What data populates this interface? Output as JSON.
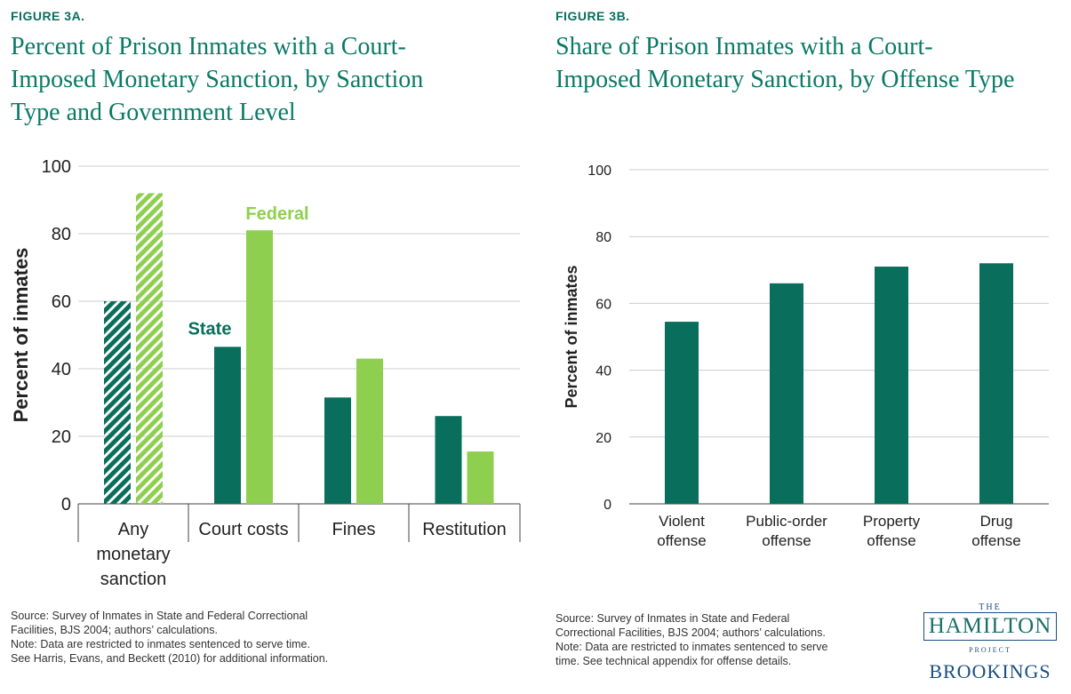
{
  "panels": {
    "a": {
      "figure_label": "FIGURE 3A.",
      "title": "Percent of Prison Inmates with a Court-\nImposed Monetary Sanction, by Sanction\nType and Government Level",
      "source": "Source: Survey of Inmates in State and Federal Correctional Facilities, BJS 2004; authors’ calculations.",
      "note": "Note: Data are restricted to inmates sentenced to serve time. See Harris, Evans, and Beckett (2010) for additional information."
    },
    "b": {
      "figure_label": "FIGURE 3B.",
      "title": "Share of Prison Inmates with a Court-\nImposed Monetary Sanction, by Offense Type",
      "source": "Source: Survey of Inmates in State and Federal Correctional Facilities, BJS 2004; authors’ calculations.",
      "note": "Note: Data are restricted to inmates sentenced to serve time. See technical appendix for offense details."
    }
  },
  "logo": {
    "the": "THE",
    "hamilton": "HAMILTON",
    "project": "PROJECT",
    "brookings": "BROOKINGS"
  },
  "colors": {
    "state": "#0a6e5c",
    "federal": "#8fcf4f",
    "title": "#0a7a66",
    "grid": "#cccccc"
  },
  "chart_data": [
    {
      "type": "bar",
      "categories": [
        "Any\nmonetary\nsanction",
        "Court costs",
        "Fines",
        "Restitution"
      ],
      "series": [
        {
          "name": "State",
          "values": [
            60,
            46.5,
            31.5,
            26
          ]
        },
        {
          "name": "Federal",
          "values": [
            92,
            81,
            43,
            15.5
          ]
        }
      ],
      "hatched_categories": [
        0
      ],
      "ylabel": "Percent of inmates",
      "xlabel": "",
      "ylim": [
        0,
        100
      ],
      "yticks": [
        0,
        20,
        40,
        60,
        80,
        100
      ],
      "grid": true
    },
    {
      "type": "bar",
      "categories": [
        "Violent\noffense",
        "Public-order\noffense",
        "Property\noffense",
        "Drug\noffense"
      ],
      "values": [
        54.5,
        66,
        71,
        72
      ],
      "ylabel": "Percent of inmates",
      "xlabel": "",
      "ylim": [
        0,
        100
      ],
      "yticks": [
        0,
        20,
        40,
        60,
        80,
        100
      ],
      "grid": true
    }
  ]
}
